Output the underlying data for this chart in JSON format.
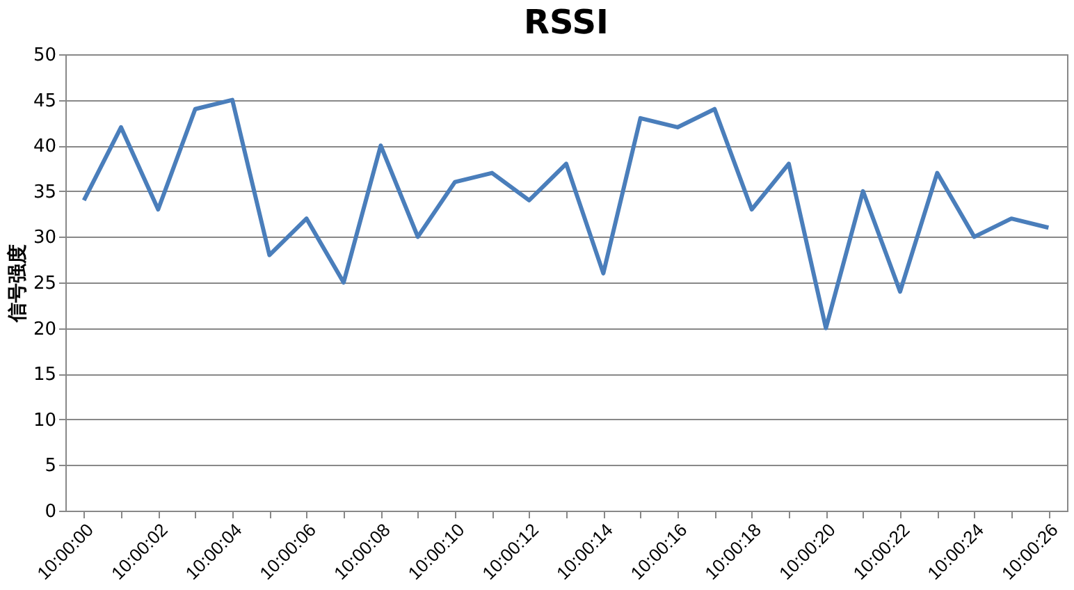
{
  "chart_data": {
    "type": "line",
    "title": "RSSI",
    "ylabel": "信号强度",
    "categories": [
      "10:00:00",
      null,
      "10:00:02",
      null,
      "10:00:04",
      null,
      "10:00:06",
      null,
      "10:00:08",
      null,
      "10:00:10",
      null,
      "10:00:12",
      null,
      "10:00:14",
      null,
      "10:00:16",
      null,
      "10:00:18",
      null,
      "10:00:20",
      null,
      "10:00:22",
      null,
      "10:00:24",
      null,
      "10:00:26"
    ],
    "series": [
      {
        "color": "#4a7ebb",
        "values": [
          34,
          42,
          33,
          44,
          45,
          28,
          32,
          25,
          40,
          30,
          36,
          37,
          34,
          38,
          26,
          43,
          42,
          44,
          33,
          38,
          20,
          35,
          24,
          37,
          30,
          32,
          31
        ]
      }
    ],
    "ylim": [
      0,
      50
    ],
    "yticks": [
      0,
      5,
      10,
      15,
      20,
      25,
      30,
      35,
      40,
      45,
      50
    ],
    "grid": "y",
    "marker": "none",
    "line_style": "solid"
  }
}
